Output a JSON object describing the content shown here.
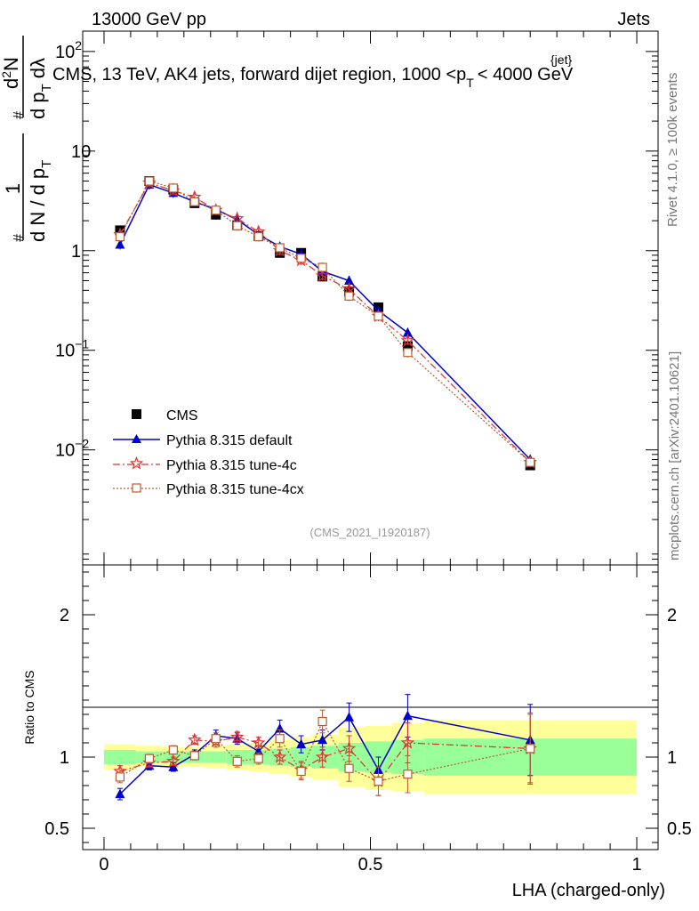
{
  "header": {
    "left": "13000 GeV pp",
    "right": "Jets"
  },
  "title_parts": {
    "pre": "CMS, 13 TeV, AK4 jets, forward dijet region, 1000 <p",
    "sub": "T",
    "sup": "{jet}",
    "post": "< 4000 GeV"
  },
  "side_texts": {
    "rivet": "Rivet 4.1.0, ≥ 100k events",
    "mcplots": "mcplots.cern.ch [arXiv:2401.10621]"
  },
  "analysis_id": "(CMS_2021_I1920187)",
  "ylabel_main_parts": [
    "1",
    "d N / d p",
    "T",
    "#",
    "d",
    "2",
    "N",
    "d p",
    "T",
    "dλ",
    "#"
  ],
  "ylabel_ratio": "Ratio to CMS",
  "xlabel": "LHA (charged-only)",
  "colors": {
    "cms": "#000000",
    "default": "#0000cc",
    "tune4c": "#dd3333",
    "tune4cx": "#b85c2e",
    "band_inner": "#99ff99",
    "band_outer": "#ffff99"
  },
  "chart_data": [
    {
      "type": "scatter",
      "panel": "main",
      "yscale": "log",
      "xlim": [
        -0.04,
        1.04
      ],
      "ylim": [
        0.0007,
        160
      ],
      "y_ticks": [
        {
          "v": 0.01,
          "base": "10",
          "exp": "−2"
        },
        {
          "v": 0.1,
          "base": "10",
          "exp": "−1"
        },
        {
          "v": 1,
          "base": "1",
          "exp": ""
        },
        {
          "v": 10,
          "base": "10",
          "exp": ""
        },
        {
          "v": 100,
          "base": "10",
          "exp": "2"
        }
      ],
      "x": [
        0.03,
        0.085,
        0.13,
        0.17,
        0.21,
        0.25,
        0.29,
        0.33,
        0.37,
        0.41,
        0.46,
        0.515,
        0.57,
        0.8
      ],
      "series": [
        {
          "name": "CMS",
          "key": "cms",
          "marker": "square",
          "values": [
            1.6,
            5.0,
            4.1,
            3.0,
            2.3,
            1.8,
            1.4,
            0.95,
            0.95,
            0.55,
            0.39,
            0.27,
            0.11,
            0.007
          ]
        },
        {
          "name": "Pythia 8.315 default",
          "key": "default",
          "marker": "triangle",
          "line": "solid",
          "values": [
            1.15,
            4.6,
            3.8,
            3.1,
            2.6,
            2.05,
            1.45,
            1.1,
            0.92,
            0.62,
            0.5,
            0.25,
            0.15,
            0.008
          ]
        },
        {
          "name": "Pythia 8.315 tune-4c",
          "key": "tune4c",
          "marker": "star",
          "line": "dashdot",
          "values": [
            1.45,
            4.8,
            4.0,
            3.45,
            2.55,
            2.1,
            1.55,
            1.0,
            0.8,
            0.56,
            0.41,
            0.22,
            0.125,
            0.0075
          ]
        },
        {
          "name": "Pythia 8.315 tune-4cx",
          "key": "tune4cx",
          "marker": "opensquare",
          "line": "dotted",
          "values": [
            1.38,
            5.0,
            4.25,
            3.1,
            2.55,
            1.78,
            1.38,
            1.07,
            0.84,
            0.68,
            0.35,
            0.22,
            0.095,
            0.0075
          ]
        }
      ]
    },
    {
      "type": "scatter",
      "panel": "ratio",
      "ylim": [
        0.35,
        2.35
      ],
      "y_ticks": [
        0.5,
        1,
        2
      ],
      "x_ticks": [
        0,
        0.5,
        1
      ],
      "x_tick_labels": [
        "0",
        "0.5",
        "1"
      ],
      "bands": [
        {
          "lo": 0.0,
          "hi": 0.06,
          "in_lo": 0.95,
          "in_hi": 1.05,
          "out_lo": 0.91,
          "out_hi": 1.09
        },
        {
          "lo": 0.06,
          "hi": 0.11,
          "in_lo": 0.96,
          "in_hi": 1.04,
          "out_lo": 0.93,
          "out_hi": 1.08
        },
        {
          "lo": 0.11,
          "hi": 0.15,
          "in_lo": 0.96,
          "in_hi": 1.04,
          "out_lo": 0.93,
          "out_hi": 1.07
        },
        {
          "lo": 0.15,
          "hi": 0.19,
          "in_lo": 0.96,
          "in_hi": 1.04,
          "out_lo": 0.93,
          "out_hi": 1.07
        },
        {
          "lo": 0.19,
          "hi": 0.23,
          "in_lo": 0.96,
          "in_hi": 1.04,
          "out_lo": 0.92,
          "out_hi": 1.08
        },
        {
          "lo": 0.23,
          "hi": 0.27,
          "in_lo": 0.95,
          "in_hi": 1.05,
          "out_lo": 0.91,
          "out_hi": 1.09
        },
        {
          "lo": 0.27,
          "hi": 0.31,
          "in_lo": 0.95,
          "in_hi": 1.05,
          "out_lo": 0.9,
          "out_hi": 1.1
        },
        {
          "lo": 0.31,
          "hi": 0.35,
          "in_lo": 0.94,
          "in_hi": 1.06,
          "out_lo": 0.88,
          "out_hi": 1.12
        },
        {
          "lo": 0.35,
          "hi": 0.39,
          "in_lo": 0.93,
          "in_hi": 1.07,
          "out_lo": 0.86,
          "out_hi": 1.14
        },
        {
          "lo": 0.39,
          "hi": 0.44,
          "in_lo": 0.92,
          "in_hi": 1.08,
          "out_lo": 0.84,
          "out_hi": 1.16
        },
        {
          "lo": 0.44,
          "hi": 0.49,
          "in_lo": 0.9,
          "in_hi": 1.1,
          "out_lo": 0.79,
          "out_hi": 1.21
        },
        {
          "lo": 0.49,
          "hi": 0.54,
          "in_lo": 0.89,
          "in_hi": 1.11,
          "out_lo": 0.77,
          "out_hi": 1.22
        },
        {
          "lo": 0.54,
          "hi": 0.6,
          "in_lo": 0.88,
          "in_hi": 1.12,
          "out_lo": 0.76,
          "out_hi": 1.24
        },
        {
          "lo": 0.6,
          "hi": 1.0,
          "in_lo": 0.87,
          "in_hi": 1.13,
          "out_lo": 0.74,
          "out_hi": 1.26
        }
      ],
      "series": [
        {
          "key": "default",
          "values": [
            0.74,
            0.94,
            0.93,
            1.02,
            1.15,
            1.13,
            1.04,
            1.2,
            1.09,
            1.12,
            1.28,
            0.91,
            1.29,
            1.12
          ],
          "err": [
            0.04,
            0.03,
            0.03,
            0.03,
            0.04,
            0.04,
            0.04,
            0.06,
            0.06,
            0.07,
            0.1,
            0.09,
            0.15,
            0.25
          ]
        },
        {
          "key": "tune4c",
          "values": [
            0.9,
            0.96,
            0.97,
            1.12,
            1.11,
            1.14,
            1.1,
            1.0,
            0.91,
            1.0,
            1.06,
            0.83,
            1.1,
            1.06
          ],
          "err": [
            0.04,
            0.03,
            0.03,
            0.03,
            0.04,
            0.04,
            0.04,
            0.05,
            0.06,
            0.07,
            0.09,
            0.1,
            0.14,
            0.25
          ]
        },
        {
          "key": "tune4cx",
          "values": [
            0.86,
            0.99,
            1.05,
            1.01,
            1.13,
            0.97,
            0.99,
            1.13,
            0.9,
            1.25,
            0.92,
            0.83,
            0.88,
            1.06
          ],
          "err": [
            0.04,
            0.03,
            0.03,
            0.03,
            0.04,
            0.04,
            0.04,
            0.06,
            0.06,
            0.08,
            0.09,
            0.1,
            0.13,
            0.24
          ]
        }
      ]
    }
  ]
}
